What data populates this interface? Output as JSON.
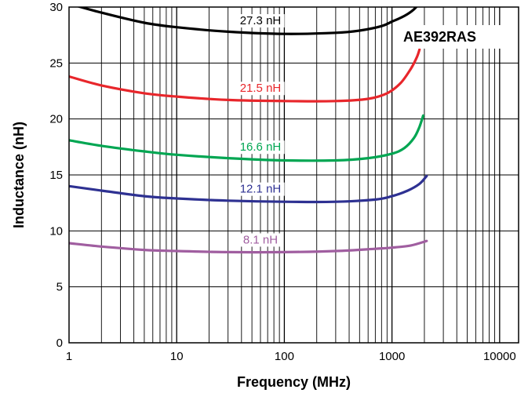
{
  "chart_data": {
    "type": "line",
    "title": "",
    "part_label": "AE392RAS",
    "xlabel": "Frequency (MHz)",
    "ylabel": "Inductance (nH)",
    "x_scale": "log",
    "xlim": [
      1,
      15000
    ],
    "ylim": [
      0,
      30
    ],
    "x_ticks": [
      1,
      10,
      100,
      1000,
      10000
    ],
    "x_tick_labels": [
      "1",
      "10",
      "100",
      "1000",
      "10000"
    ],
    "y_ticks": [
      0,
      5,
      10,
      15,
      20,
      25,
      30
    ],
    "y_tick_labels": [
      "0",
      "5",
      "10",
      "15",
      "20",
      "25",
      "30"
    ],
    "grid": true,
    "series": [
      {
        "name": "27.3 nH",
        "color": "#000000",
        "x": [
          1,
          2,
          5,
          10,
          30,
          100,
          300,
          500,
          800,
          1000,
          1300,
          1600,
          1900
        ],
        "y": [
          30.3,
          29.5,
          28.6,
          28.2,
          27.8,
          27.6,
          27.7,
          27.9,
          28.3,
          28.7,
          29.2,
          29.8,
          30.6
        ]
      },
      {
        "name": "21.5 nH",
        "color": "#e8262b",
        "x": [
          1,
          2,
          5,
          10,
          30,
          100,
          300,
          600,
          900,
          1200,
          1500,
          1700,
          1800
        ],
        "y": [
          23.8,
          23.0,
          22.3,
          22.0,
          21.7,
          21.6,
          21.6,
          21.8,
          22.3,
          23.2,
          24.5,
          25.5,
          26.2
        ]
      },
      {
        "name": "16.6 nH",
        "color": "#00a652",
        "x": [
          1,
          2,
          5,
          10,
          30,
          100,
          300,
          600,
          1000,
          1300,
          1600,
          1800,
          1950
        ],
        "y": [
          18.1,
          17.6,
          17.1,
          16.8,
          16.5,
          16.3,
          16.3,
          16.5,
          16.9,
          17.4,
          18.3,
          19.3,
          20.3
        ]
      },
      {
        "name": "12.1 nH",
        "color": "#2e3192",
        "x": [
          1,
          2,
          5,
          10,
          30,
          100,
          300,
          700,
          1000,
          1400,
          1800,
          2100
        ],
        "y": [
          14.0,
          13.6,
          13.1,
          12.9,
          12.7,
          12.6,
          12.6,
          12.8,
          13.1,
          13.6,
          14.2,
          14.9
        ]
      },
      {
        "name": "8.1 nH",
        "color": "#a05ea0",
        "x": [
          1,
          2,
          5,
          10,
          30,
          100,
          300,
          700,
          1000,
          1500,
          2100
        ],
        "y": [
          8.9,
          8.6,
          8.3,
          8.2,
          8.1,
          8.1,
          8.2,
          8.4,
          8.5,
          8.7,
          9.1
        ]
      }
    ]
  }
}
